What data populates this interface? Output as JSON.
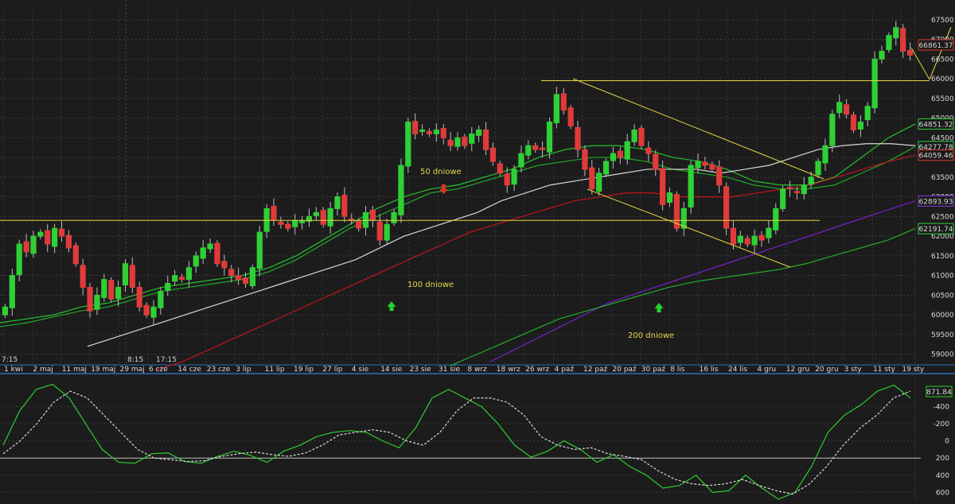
{
  "chart_data": [
    {
      "type": "candlestick",
      "y_ticks": [
        59000,
        59500,
        60000,
        60500,
        61000,
        61500,
        62000,
        62500,
        63000,
        63500,
        64000,
        64500,
        65000,
        65500,
        66000,
        66500,
        67000,
        67500
      ],
      "y_range": [
        58750,
        67900
      ],
      "x_ticks": [
        "1 kwi",
        "2 maj",
        "11 maj",
        "19 maj",
        "29 maj",
        "6 cze",
        "14 cze",
        "23 cze",
        "3 lip",
        "11 lip",
        "19 lip",
        "27 lip",
        "4 sie",
        "14 sie",
        "23 sie",
        "31 sie",
        "8 wrz",
        "18 wrz",
        "26 wrz",
        "4 paź",
        "12 paź",
        "20 paź",
        "30 paź",
        "8 lis",
        "16 lis",
        "24 lis",
        "4 gru",
        "12 gru",
        "20 gru",
        "3 sty",
        "11 sty",
        "19 sty"
      ],
      "time_labels": [
        "7:15",
        "8:15",
        "17:15"
      ],
      "close_series": [
        60200,
        61000,
        61800,
        61600,
        62000,
        62100,
        61800,
        62200,
        62000,
        61700,
        61300,
        60700,
        60100,
        60500,
        60900,
        60400,
        60700,
        61300,
        60700,
        60200,
        60000,
        60200,
        60600,
        60800,
        61000,
        60900,
        61200,
        61500,
        61700,
        61800,
        61300,
        61200,
        61000,
        60900,
        60800,
        61200,
        62100,
        62700,
        62400,
        62300,
        62200,
        62400,
        62400,
        62500,
        62600,
        62300,
        62700,
        63000,
        62500,
        62400,
        62200,
        62600,
        62400,
        61900,
        62300,
        62600,
        63800,
        64900,
        64600,
        64700,
        64600,
        64700,
        64500,
        64300,
        64500,
        64300,
        64600,
        64700,
        64200,
        63900,
        63600,
        63300,
        63700,
        64100,
        64300,
        64200,
        64200,
        64900,
        65600,
        65200,
        64800,
        64200,
        63700,
        63200,
        63600,
        63900,
        64100,
        64000,
        64400,
        64700,
        64300,
        64100,
        63700,
        62800,
        63100,
        62200,
        62700,
        63800,
        63900,
        63800,
        63700,
        63300,
        62200,
        61800,
        62000,
        61800,
        62000,
        61900,
        62200,
        62700,
        63200,
        63200,
        63100,
        63300,
        63500,
        63900,
        64300,
        65100,
        65400,
        65100,
        64700,
        64900,
        65300,
        66500,
        66700,
        67100,
        67300,
        66700,
        66600
      ],
      "series": [
        {
          "name": "50 dniowe",
          "color": "#27c22f",
          "values": [
            59800,
            59900,
            60000,
            60200,
            60300,
            60500,
            60700,
            60800,
            60900,
            61000,
            61200,
            61500,
            61900,
            62300,
            62700,
            63000,
            63200,
            63300,
            63500,
            63700,
            64000,
            64200,
            64300,
            64300,
            64200,
            64000,
            63900,
            63700,
            63400,
            63300,
            63300,
            63500,
            64000,
            64500,
            64851
          ]
        },
        {
          "name": "",
          "color": "#1faa26",
          "values": [
            59700,
            59800,
            59950,
            60100,
            60200,
            60400,
            60600,
            60700,
            60800,
            60900,
            61100,
            61400,
            61800,
            62200,
            62500,
            62800,
            63100,
            63200,
            63400,
            63600,
            63800,
            63900,
            64000,
            64000,
            63900,
            63700,
            63600,
            63500,
            63300,
            63200,
            63200,
            63300,
            63600,
            63900,
            64277
          ]
        },
        {
          "name": "",
          "color": "#d8d8d8",
          "values": [
            59200,
            59400,
            59600,
            59800,
            60000,
            60200,
            60400,
            60600,
            60800,
            61000,
            61200,
            61400,
            61700,
            62000,
            62200,
            62400,
            62600,
            62900,
            63100,
            63300,
            63400,
            63500,
            63600,
            63700,
            63700,
            63700,
            63600,
            63700,
            63800,
            64000,
            64200,
            64300,
            64350,
            64350,
            64300
          ]
        },
        {
          "name": "100 dniowe",
          "color": "#c0141c",
          "values": [
            58600,
            58800,
            59100,
            59400,
            59700,
            60000,
            60300,
            60600,
            60900,
            61200,
            61500,
            61800,
            62100,
            62300,
            62500,
            62700,
            62900,
            63000,
            63100,
            63100,
            63000,
            63000,
            63000,
            63100,
            63200,
            63300,
            63500,
            63700,
            63900,
            64059
          ]
        },
        {
          "name": "",
          "color": "#7820d0",
          "values": [
            58800,
            59100,
            59400,
            59700,
            60000,
            60300,
            60500,
            60700,
            60900,
            61100,
            61300,
            61500,
            61700,
            61900,
            62100,
            62300,
            62500,
            62700,
            62894
          ]
        },
        {
          "name": "200 dniowe",
          "color": "#23b02b",
          "values": [
            58700,
            59000,
            59300,
            59600,
            59900,
            60100,
            60300,
            60500,
            60700,
            60850,
            60950,
            61050,
            61150,
            61300,
            61500,
            61700,
            61900,
            62192
          ]
        }
      ],
      "hlines": [
        62400,
        65950
      ],
      "last_price": 66861,
      "value_boxes": [
        {
          "label": "66861.37",
          "color": "#e03a2c"
        },
        {
          "label": "64851.32",
          "color": "#32d03a"
        },
        {
          "label": "64277.78",
          "color": "#32d03a"
        },
        {
          "label": "64059.46",
          "color": "#e03a2c"
        },
        {
          "label": "62893.93",
          "color": "#8c3ae0"
        },
        {
          "label": "62191.74",
          "color": "#32d03a"
        }
      ],
      "annotations": [
        "50 dniowe",
        "100 dniowe",
        "200 dniowe"
      ],
      "price_tick_labels": [
        "59000",
        "59500",
        "60000",
        "60500",
        "61000",
        "61500",
        "62000",
        "62500",
        "63000",
        "63500",
        "64000",
        "64500",
        "65000",
        "65500",
        "66000",
        "66500",
        "67000",
        "67500"
      ]
    },
    {
      "type": "line",
      "y_ticks": [
        -400,
        -200,
        0,
        200,
        400,
        600
      ],
      "y_range": [
        -480,
        910
      ],
      "series": [
        {
          "name": "",
          "color": "#2ecc31",
          "values": [
            150,
            550,
            800,
            860,
            700,
            400,
            100,
            -50,
            -60,
            50,
            60,
            -40,
            -60,
            20,
            80,
            30,
            -50,
            80,
            150,
            250,
            300,
            320,
            300,
            200,
            120,
            350,
            700,
            800,
            700,
            600,
            400,
            150,
            10,
            80,
            200,
            100,
            -50,
            40,
            -100,
            -200,
            -350,
            -320,
            -200,
            -400,
            -380,
            -200,
            -350,
            -480,
            -400,
            -100,
            300,
            500,
            620,
            780,
            850,
            700
          ]
        },
        {
          "name": "",
          "color": "#d8d8d8",
          "dash": true,
          "values": [
            50,
            200,
            400,
            650,
            780,
            700,
            500,
            300,
            100,
            0,
            -20,
            -40,
            -30,
            20,
            50,
            70,
            40,
            20,
            60,
            150,
            270,
            300,
            330,
            300,
            200,
            150,
            300,
            550,
            700,
            700,
            650,
            500,
            250,
            150,
            100,
            120,
            50,
            20,
            -20,
            -150,
            -250,
            -300,
            -320,
            -300,
            -250,
            -320,
            -380,
            -420,
            -300,
            -100,
            150,
            350,
            500,
            700,
            780
          ]
        }
      ],
      "zero_line": 0,
      "value_box": "871.84",
      "price_tick_labels": [
        "600",
        "400",
        "200",
        "0",
        "-200",
        "-400"
      ]
    }
  ],
  "labels": {
    "ma50": "50 dniowe",
    "ma100": "100 dniowe",
    "ma200": "200 dniowe",
    "last_price_box": "66861.37",
    "osc_value_box": "871.84"
  }
}
